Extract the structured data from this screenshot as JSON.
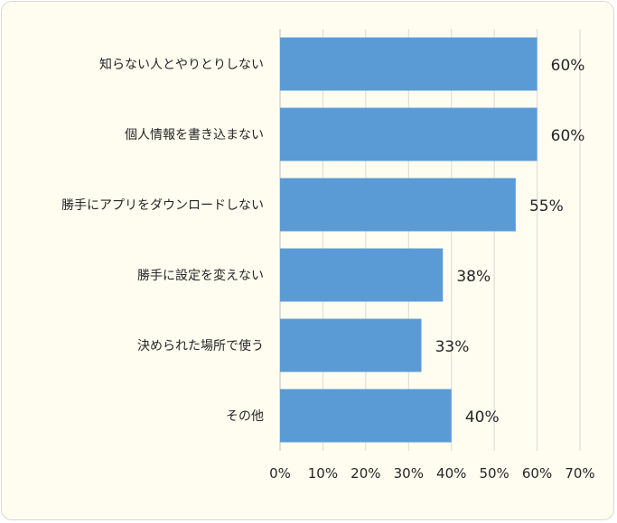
{
  "chart_data": {
    "type": "bar",
    "orientation": "horizontal",
    "categories": [
      "知らない人とやりとりしない",
      "個人情報を書き込まない",
      "勝手にアプリをダウンロードしない",
      "勝手に設定を変えない",
      "決められた場所で使う",
      "その他"
    ],
    "values": [
      60,
      60,
      55,
      38,
      33,
      40
    ],
    "data_labels": [
      "60%",
      "60%",
      "55%",
      "38%",
      "33%",
      "40%"
    ],
    "x_ticks": [
      "0%",
      "10%",
      "20%",
      "30%",
      "40%",
      "50%",
      "60%",
      "70%"
    ],
    "xlim": [
      0,
      70
    ],
    "grid": true,
    "bar_color": "#5b9bd5",
    "background_color": "#fefdf0"
  }
}
